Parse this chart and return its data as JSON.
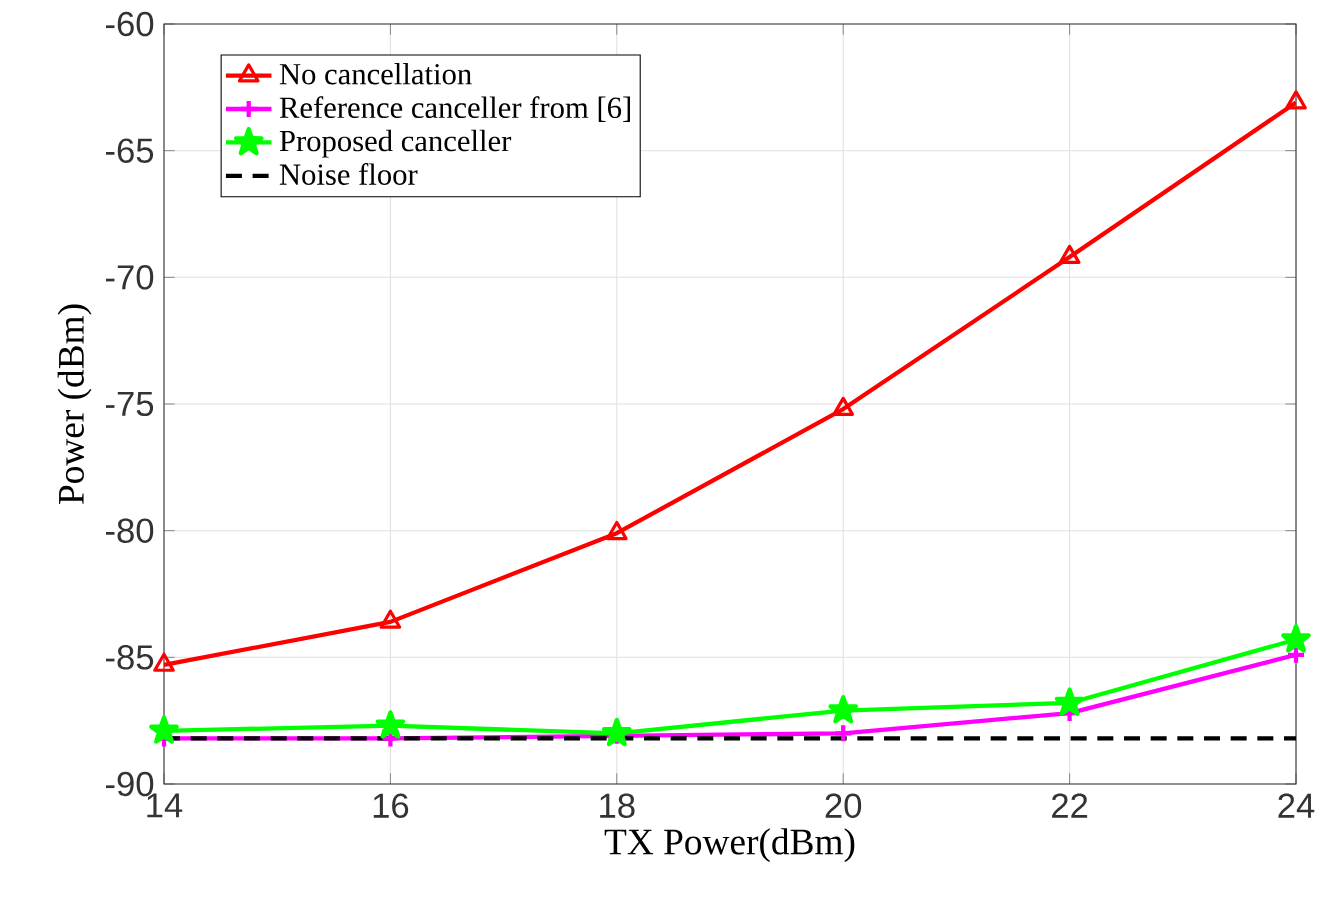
{
  "chart_data": {
    "type": "line",
    "xlabel": "TX Power(dBm)",
    "ylabel": "Power (dBm)",
    "x": [
      14,
      16,
      18,
      20,
      22,
      24
    ],
    "series": [
      {
        "name": "No cancellation",
        "color": "#ff0000",
        "marker": "triangle",
        "line_style": "solid",
        "values": [
          -85.3,
          -83.6,
          -80.1,
          -75.2,
          -69.2,
          -63.1
        ]
      },
      {
        "name": "Reference canceller from [6]",
        "color": "#ff00ff",
        "marker": "cross",
        "line_style": "solid",
        "values": [
          -88.2,
          -88.2,
          -88.1,
          -88.0,
          -87.2,
          -84.9
        ]
      },
      {
        "name": "Proposed canceller",
        "color": "#00ff00",
        "marker": "star",
        "line_style": "solid",
        "values": [
          -87.9,
          -87.7,
          -88.0,
          -87.1,
          -86.8,
          -84.3
        ]
      },
      {
        "name": "Noise floor",
        "color": "#000000",
        "marker": "none",
        "line_style": "dashed",
        "values": [
          -88.2,
          -88.2,
          -88.2,
          -88.2,
          -88.2,
          -88.2
        ]
      }
    ],
    "xlim": [
      14,
      24
    ],
    "ylim": [
      -90,
      -60
    ],
    "xticks": [
      14,
      16,
      18,
      20,
      22,
      24
    ],
    "yticks": [
      -90,
      -85,
      -80,
      -75,
      -70,
      -65,
      -60
    ],
    "grid": true,
    "legend": "top left"
  }
}
